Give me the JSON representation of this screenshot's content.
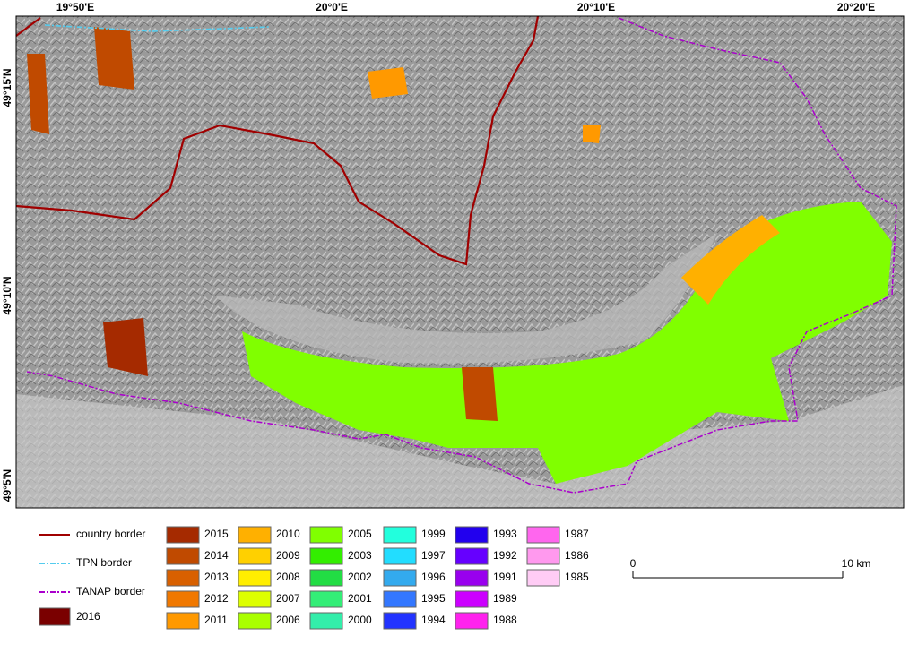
{
  "map": {
    "lon_labels": [
      "19°50'E",
      "20°0'E",
      "20°10'E",
      "20°20'E"
    ],
    "lat_labels": [
      "49°15'N",
      "49°10'N",
      "49°5'N"
    ],
    "legend": {
      "lines": [
        {
          "label": "country border",
          "color": "#a00000"
        },
        {
          "label": "TPN border",
          "color": "#55ccee"
        },
        {
          "label": "TANAP border",
          "color": "#aa00cc"
        }
      ],
      "extra": {
        "label": "2016",
        "color": "#7a0000"
      },
      "years": [
        [
          {
            "label": "2015",
            "color": "#a52a00"
          },
          {
            "label": "2014",
            "color": "#c04a00"
          },
          {
            "label": "2013",
            "color": "#d86000"
          },
          {
            "label": "2012",
            "color": "#f07800"
          },
          {
            "label": "2011",
            "color": "#ff9900"
          }
        ],
        [
          {
            "label": "2010",
            "color": "#ffb000"
          },
          {
            "label": "2009",
            "color": "#ffd000"
          },
          {
            "label": "2008",
            "color": "#ffee00"
          },
          {
            "label": "2007",
            "color": "#ddff00"
          },
          {
            "label": "2006",
            "color": "#aaff00"
          }
        ],
        [
          {
            "label": "2005",
            "color": "#80ff00"
          },
          {
            "label": "2003",
            "color": "#33ee00"
          },
          {
            "label": "2002",
            "color": "#22dd44"
          },
          {
            "label": "2001",
            "color": "#33ee77"
          },
          {
            "label": "2000",
            "color": "#33eeaa"
          }
        ],
        [
          {
            "label": "1999",
            "color": "#22ffdd"
          },
          {
            "label": "1997",
            "color": "#22ddff"
          },
          {
            "label": "1996",
            "color": "#33aaee"
          },
          {
            "label": "1995",
            "color": "#3377ff"
          },
          {
            "label": "1994",
            "color": "#2233ff"
          }
        ],
        [
          {
            "label": "1993",
            "color": "#2200ee"
          },
          {
            "label": "1992",
            "color": "#6600ff"
          },
          {
            "label": "1991",
            "color": "#9900ee"
          },
          {
            "label": "1989",
            "color": "#cc00ff"
          },
          {
            "label": "1988",
            "color": "#ff22ee"
          }
        ],
        [
          {
            "label": "1987",
            "color": "#ff66ee"
          },
          {
            "label": "1986",
            "color": "#ff99ee"
          },
          {
            "label": "1985",
            "color": "#ffccf5"
          }
        ]
      ]
    },
    "scale": {
      "start": "0",
      "end": "10 km"
    }
  }
}
